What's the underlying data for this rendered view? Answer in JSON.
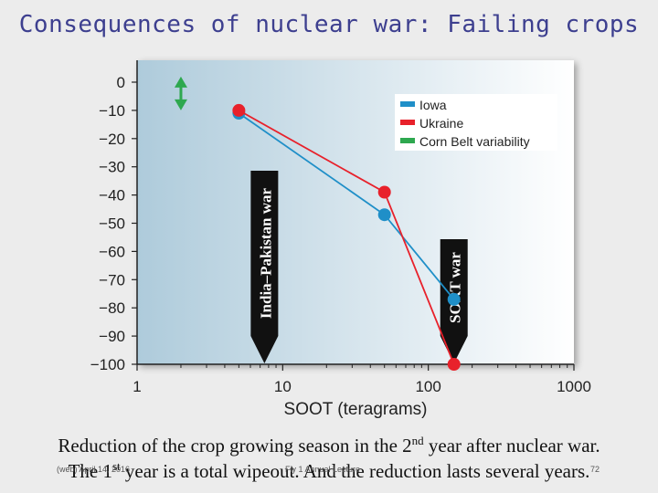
{
  "title": "Consequences of nuclear war:  Failing crops",
  "caption": {
    "line1_pre": "Reduction of the crop growing season in the 2",
    "line1_sup": "nd",
    "line1_post": " year after nuclear war.",
    "line2_pre": "The 1",
    "line2_sup": "st",
    "line2_post": " year is a total wipeout. And the reduction lasts several years."
  },
  "footer": {
    "left": "(web) April 14, 2016",
    "center": "Fiy 1 Annual Lecture",
    "right": "72"
  },
  "colors": {
    "iowa": "#1f8fc8",
    "ukraine": "#e8212b",
    "corn_belt": "#2ea84f",
    "title": "#3d3f8f",
    "plot_bg_left": "#aecbdb",
    "plot_bg_right": "#ffffff"
  },
  "chart_data": {
    "type": "line",
    "title": "",
    "xlabel": "SOOT (teragrams)",
    "ylabel": "",
    "xscale": "log",
    "xlim": [
      1,
      1000
    ],
    "ylim": [
      -100,
      0
    ],
    "xticks": [
      1,
      10,
      100,
      1000
    ],
    "yticks": [
      0,
      -10,
      -20,
      -30,
      -40,
      -50,
      -60,
      -70,
      -80,
      -90,
      -100
    ],
    "legend_position": "top-right",
    "series": [
      {
        "name": "Iowa",
        "color_key": "iowa",
        "x": [
          5,
          50,
          150
        ],
        "y": [
          -11,
          -47,
          -77
        ]
      },
      {
        "name": "Ukraine",
        "color_key": "ukraine",
        "x": [
          5,
          50,
          150
        ],
        "y": [
          -10,
          -39,
          -100
        ]
      }
    ],
    "variability_band": {
      "name": "Corn Belt variability",
      "color_key": "corn_belt",
      "x": 2,
      "y_range": [
        2,
        -10
      ]
    },
    "markers": [
      {
        "label": "India–Pakistan war",
        "x": 5
      },
      {
        "label": "SORT war",
        "x": 150
      }
    ]
  }
}
